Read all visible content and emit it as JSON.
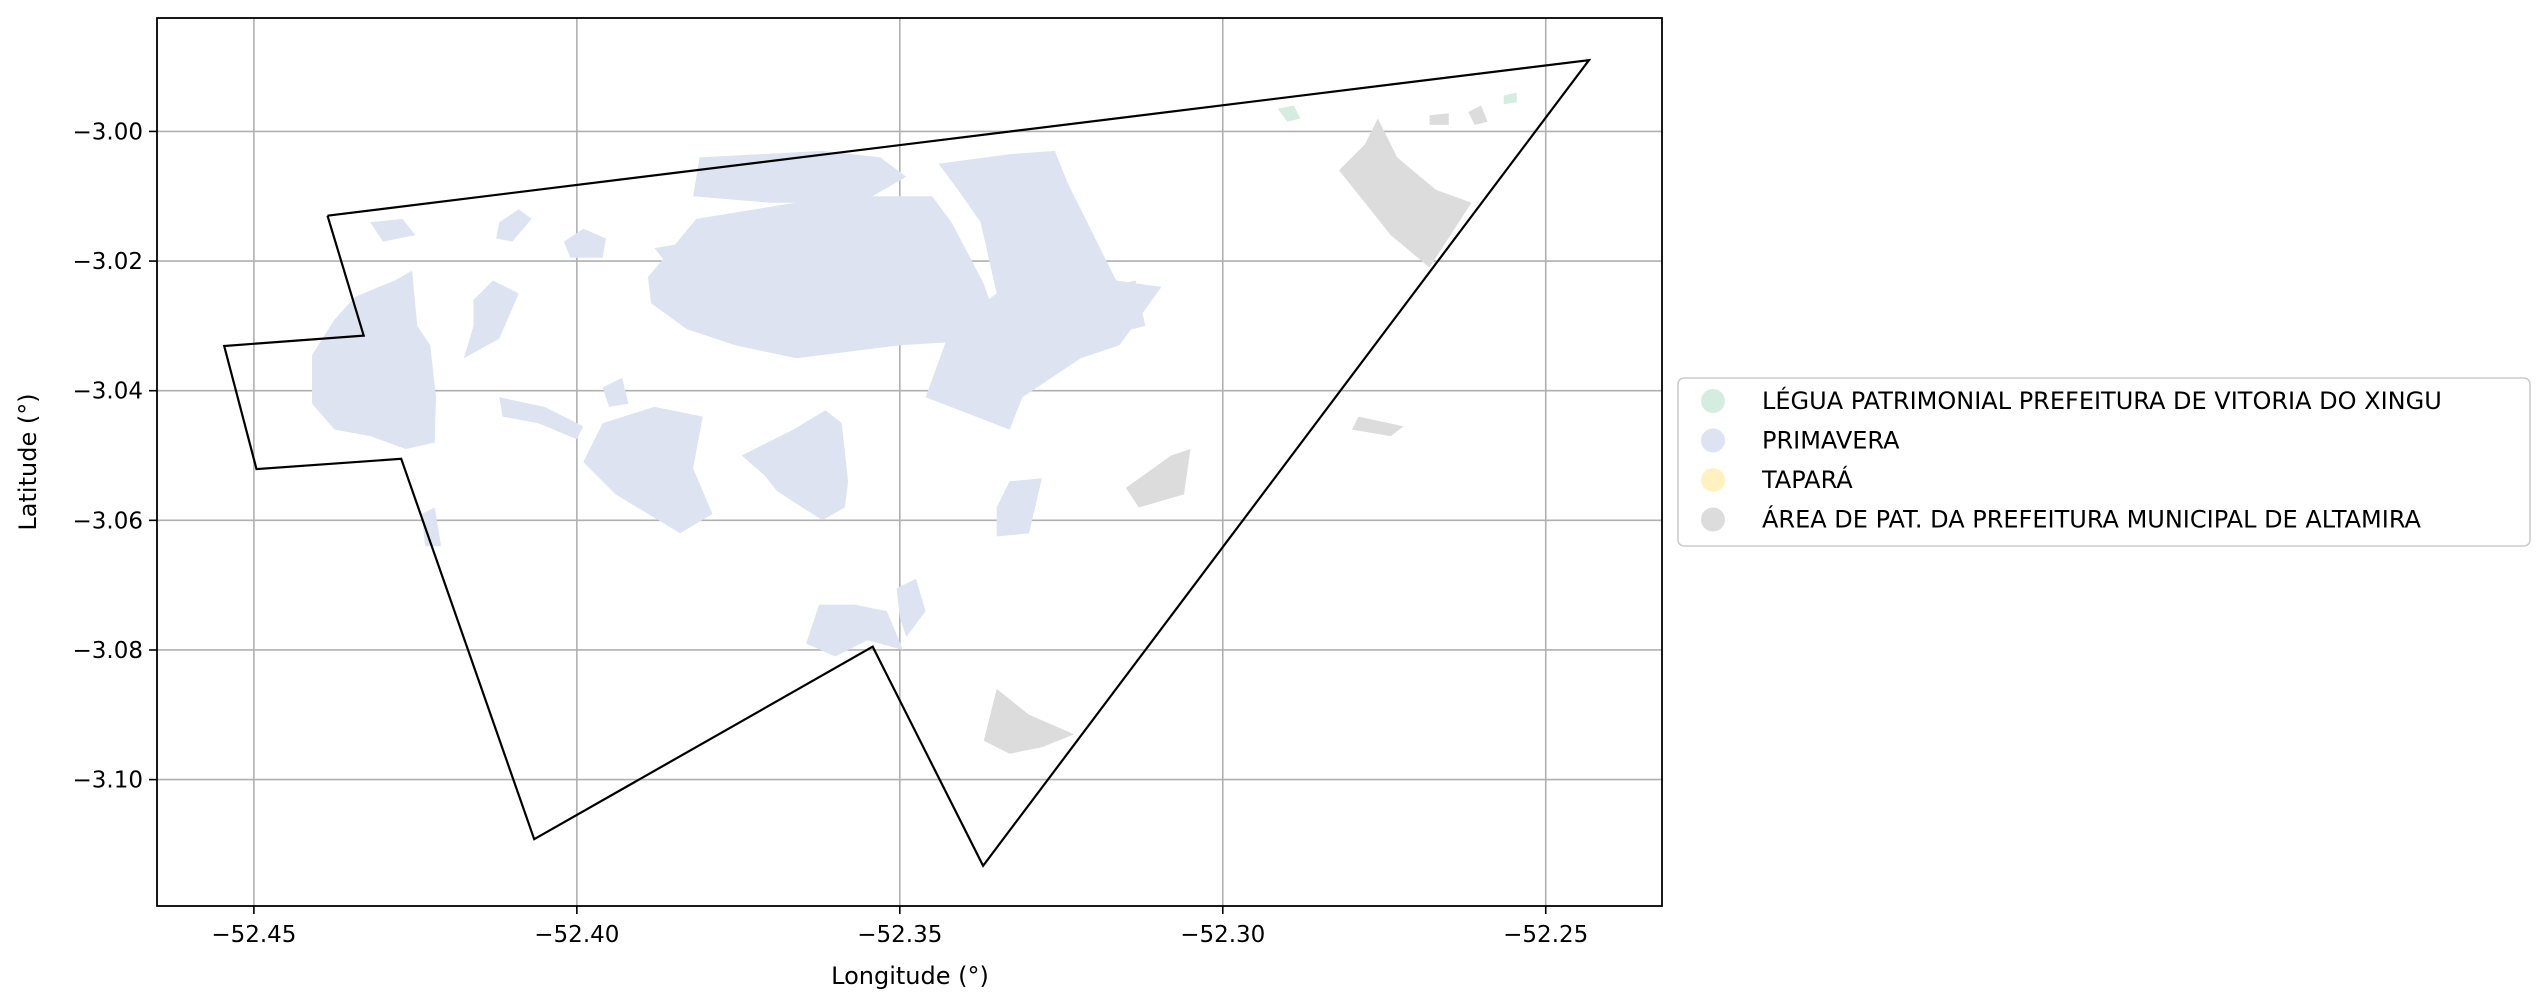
{
  "chart_data": {
    "type": "map",
    "xlabel": "Longitude (°)",
    "ylabel": "Latitude (°)",
    "xlim": [
      -52.465,
      -52.232
    ],
    "ylim": [
      -3.1195,
      -2.9825
    ],
    "xticks": [
      -52.45,
      -52.4,
      -52.35,
      -52.3,
      -52.25
    ],
    "xtick_labels": [
      "−52.45",
      "−52.40",
      "−52.35",
      "−52.30",
      "−52.25"
    ],
    "yticks": [
      -3.0,
      -3.02,
      -3.04,
      -3.06,
      -3.08,
      -3.1
    ],
    "ytick_labels": [
      "−3.00",
      "−3.02",
      "−3.04",
      "−3.06",
      "−3.08",
      "−3.10"
    ],
    "grid": true,
    "legend_position": "right, outside plot",
    "legend": [
      {
        "label": "LÉGUA PATRIMONIAL PREFEITURA DE VITORIA DO XINGU",
        "color": "#d5ede1"
      },
      {
        "label": "PRIMAVERA",
        "color": "#dde3f0"
      },
      {
        "label": "TAPARÁ",
        "color": "#fff2c0"
      },
      {
        "label": "ÁREA DE PAT. DA PREFEITURA MUNICIPAL DE ALTAMIRA",
        "color": "#dcdcdc"
      }
    ],
    "boundary": [
      [
        -52.4386,
        -3.013
      ],
      [
        -52.2433,
        -2.989
      ],
      [
        -52.3371,
        -3.1133
      ],
      [
        -52.3542,
        -3.0795
      ],
      [
        -52.4066,
        -3.1092
      ],
      [
        -52.4272,
        -3.0505
      ],
      [
        -52.4496,
        -3.0521
      ],
      [
        -52.4546,
        -3.0331
      ],
      [
        -52.433,
        -3.0315
      ],
      [
        -52.4386,
        -3.013
      ]
    ],
    "regions": [
      {
        "class": "PRIMAVERA",
        "coords": [
          [
            -52.4343,
            -3.0255
          ],
          [
            -52.4282,
            -3.023
          ],
          [
            -52.4255,
            -3.0215
          ],
          [
            -52.4247,
            -3.03
          ],
          [
            -52.4227,
            -3.033
          ],
          [
            -52.4218,
            -3.041
          ],
          [
            -52.422,
            -3.048
          ],
          [
            -52.4265,
            -3.049
          ],
          [
            -52.432,
            -3.047
          ],
          [
            -52.4375,
            -3.046
          ],
          [
            -52.441,
            -3.042
          ],
          [
            -52.441,
            -3.0345
          ],
          [
            -52.4375,
            -3.029
          ]
        ]
      },
      {
        "class": "PRIMAVERA",
        "coords": [
          [
            -52.389,
            -3.0225
          ],
          [
            -52.3815,
            -3.0135
          ],
          [
            -52.36,
            -3.01
          ],
          [
            -52.345,
            -3.01
          ],
          [
            -52.342,
            -3.014
          ],
          [
            -52.337,
            -3.0235
          ],
          [
            -52.3335,
            -3.0335
          ],
          [
            -52.342,
            -3.0325
          ],
          [
            -52.35,
            -3.033
          ],
          [
            -52.366,
            -3.035
          ],
          [
            -52.3755,
            -3.033
          ],
          [
            -52.383,
            -3.0305
          ],
          [
            -52.3885,
            -3.0265
          ]
        ]
      },
      {
        "class": "PRIMAVERA",
        "coords": [
          [
            -52.344,
            -3.005
          ],
          [
            -52.333,
            -3.0035
          ],
          [
            -52.326,
            -3.003
          ],
          [
            -52.324,
            -3.008
          ],
          [
            -52.3165,
            -3.023
          ],
          [
            -52.3095,
            -3.024
          ],
          [
            -52.316,
            -3.033
          ],
          [
            -52.322,
            -3.035
          ],
          [
            -52.331,
            -3.041
          ],
          [
            -52.333,
            -3.046
          ],
          [
            -52.346,
            -3.041
          ],
          [
            -52.342,
            -3.03
          ],
          [
            -52.335,
            -3.025
          ],
          [
            -52.3375,
            -3.014
          ],
          [
            -52.341,
            -3.009
          ]
        ]
      },
      {
        "class": "PRIMAVERA",
        "coords": [
          [
            -52.381,
            -3.004
          ],
          [
            -52.362,
            -3.003
          ],
          [
            -52.353,
            -3.004
          ],
          [
            -52.349,
            -3.007
          ],
          [
            -52.356,
            -3.011
          ],
          [
            -52.37,
            -3.011
          ],
          [
            -52.382,
            -3.01
          ]
        ]
      },
      {
        "class": "PRIMAVERA",
        "coords": [
          [
            -52.3745,
            -3.05
          ],
          [
            -52.3665,
            -3.046
          ],
          [
            -52.3615,
            -3.043
          ],
          [
            -52.359,
            -3.045
          ],
          [
            -52.358,
            -3.054
          ],
          [
            -52.3585,
            -3.058
          ],
          [
            -52.362,
            -3.06
          ],
          [
            -52.369,
            -3.0555
          ],
          [
            -52.371,
            -3.053
          ]
        ]
      },
      {
        "class": "PRIMAVERA",
        "coords": [
          [
            -52.396,
            -3.045
          ],
          [
            -52.388,
            -3.0425
          ],
          [
            -52.3805,
            -3.044
          ],
          [
            -52.382,
            -3.052
          ],
          [
            -52.379,
            -3.059
          ],
          [
            -52.384,
            -3.062
          ],
          [
            -52.394,
            -3.056
          ],
          [
            -52.399,
            -3.051
          ]
        ]
      },
      {
        "class": "PRIMAVERA",
        "coords": [
          [
            -52.3625,
            -3.073
          ],
          [
            -52.357,
            -3.073
          ],
          [
            -52.352,
            -3.074
          ],
          [
            -52.3495,
            -3.08
          ],
          [
            -52.355,
            -3.0785
          ],
          [
            -52.36,
            -3.081
          ],
          [
            -52.3645,
            -3.079
          ]
        ]
      },
      {
        "class": "PRIMAVERA",
        "coords": [
          [
            -52.3505,
            -3.0705
          ],
          [
            -52.3475,
            -3.069
          ],
          [
            -52.346,
            -3.074
          ],
          [
            -52.349,
            -3.078
          ],
          [
            -52.35,
            -3.075
          ]
        ]
      },
      {
        "class": "PRIMAVERA",
        "coords": [
          [
            -52.333,
            -3.054
          ],
          [
            -52.328,
            -3.0535
          ],
          [
            -52.33,
            -3.062
          ],
          [
            -52.335,
            -3.0625
          ],
          [
            -52.335,
            -3.058
          ]
        ]
      },
      {
        "class": "PRIMAVERA",
        "coords": [
          [
            -52.416,
            -3.026
          ],
          [
            -52.413,
            -3.023
          ],
          [
            -52.409,
            -3.025
          ],
          [
            -52.412,
            -3.032
          ],
          [
            -52.4175,
            -3.035
          ],
          [
            -52.416,
            -3.03
          ]
        ]
      },
      {
        "class": "PRIMAVERA",
        "coords": [
          [
            -52.412,
            -3.014
          ],
          [
            -52.409,
            -3.012
          ],
          [
            -52.407,
            -3.0135
          ],
          [
            -52.41,
            -3.017
          ],
          [
            -52.4125,
            -3.0165
          ]
        ]
      },
      {
        "class": "PRIMAVERA",
        "coords": [
          [
            -52.402,
            -3.017
          ],
          [
            -52.399,
            -3.015
          ],
          [
            -52.3955,
            -3.0165
          ],
          [
            -52.396,
            -3.0195
          ],
          [
            -52.401,
            -3.0195
          ]
        ]
      },
      {
        "class": "PRIMAVERA",
        "coords": [
          [
            -52.412,
            -3.041
          ],
          [
            -52.405,
            -3.0425
          ],
          [
            -52.399,
            -3.0455
          ],
          [
            -52.4,
            -3.0475
          ],
          [
            -52.406,
            -3.045
          ],
          [
            -52.4115,
            -3.044
          ]
        ]
      },
      {
        "class": "PRIMAVERA",
        "coords": [
          [
            -52.389,
            -3.053
          ],
          [
            -52.383,
            -3.053
          ],
          [
            -52.381,
            -3.06
          ],
          [
            -52.385,
            -3.061
          ],
          [
            -52.388,
            -3.057
          ]
        ]
      },
      {
        "class": "PRIMAVERA",
        "coords": [
          [
            -52.318,
            -3.024
          ],
          [
            -52.3135,
            -3.023
          ],
          [
            -52.312,
            -3.03
          ],
          [
            -52.316,
            -3.031
          ]
        ]
      },
      {
        "class": "PRIMAVERA",
        "coords": [
          [
            -52.424,
            -3.059
          ],
          [
            -52.422,
            -3.058
          ],
          [
            -52.421,
            -3.064
          ],
          [
            -52.4235,
            -3.064
          ]
        ]
      },
      {
        "class": "PRIMAVERA",
        "coords": [
          [
            -52.432,
            -3.014
          ],
          [
            -52.427,
            -3.0135
          ],
          [
            -52.425,
            -3.016
          ],
          [
            -52.43,
            -3.017
          ]
        ]
      },
      {
        "class": "PRIMAVERA",
        "coords": [
          [
            -52.396,
            -3.0395
          ],
          [
            -52.393,
            -3.038
          ],
          [
            -52.392,
            -3.042
          ],
          [
            -52.395,
            -3.0425
          ]
        ]
      },
      {
        "class": "PRIMAVERA",
        "coords": [
          [
            -52.388,
            -3.018
          ],
          [
            -52.382,
            -3.017
          ],
          [
            -52.378,
            -3.02
          ],
          [
            -52.384,
            -3.023
          ]
        ]
      },
      {
        "class": "LÉGUA PATRIMONIAL PREFEITURA DE VITORIA DO XINGU",
        "coords": [
          [
            -52.2915,
            -2.9965
          ],
          [
            -52.289,
            -2.996
          ],
          [
            -52.288,
            -2.998
          ],
          [
            -52.29,
            -2.9985
          ]
        ]
      },
      {
        "class": "LÉGUA PATRIMONIAL PREFEITURA DE VITORIA DO XINGU",
        "coords": [
          [
            -52.2565,
            -2.9945
          ],
          [
            -52.2545,
            -2.994
          ],
          [
            -52.2545,
            -2.9955
          ],
          [
            -52.2565,
            -2.9958
          ]
        ]
      },
      {
        "class": "ÁREA DE PAT. DA PREFEITURA MUNICIPAL DE ALTAMIRA",
        "coords": [
          [
            -52.282,
            -3.006
          ],
          [
            -52.278,
            -3.002
          ],
          [
            -52.276,
            -2.998
          ],
          [
            -52.273,
            -3.004
          ],
          [
            -52.267,
            -3.009
          ],
          [
            -52.2615,
            -3.011
          ],
          [
            -52.268,
            -3.021
          ],
          [
            -52.274,
            -3.016
          ],
          [
            -52.278,
            -3.011
          ]
        ]
      },
      {
        "class": "ÁREA DE PAT. DA PREFEITURA MUNICIPAL DE ALTAMIRA",
        "coords": [
          [
            -52.315,
            -3.055
          ],
          [
            -52.308,
            -3.05
          ],
          [
            -52.305,
            -3.049
          ],
          [
            -52.306,
            -3.056
          ],
          [
            -52.313,
            -3.058
          ]
        ]
      },
      {
        "class": "ÁREA DE PAT. DA PREFEITURA MUNICIPAL DE ALTAMIRA",
        "coords": [
          [
            -52.335,
            -3.086
          ],
          [
            -52.33,
            -3.09
          ],
          [
            -52.323,
            -3.093
          ],
          [
            -52.328,
            -3.095
          ],
          [
            -52.333,
            -3.096
          ],
          [
            -52.337,
            -3.094
          ]
        ]
      },
      {
        "class": "ÁREA DE PAT. DA PREFEITURA MUNICIPAL DE ALTAMIRA",
        "coords": [
          [
            -52.262,
            -2.997
          ],
          [
            -52.26,
            -2.996
          ],
          [
            -52.259,
            -2.9985
          ],
          [
            -52.261,
            -2.999
          ]
        ]
      },
      {
        "class": "ÁREA DE PAT. DA PREFEITURA MUNICIPAL DE ALTAMIRA",
        "coords": [
          [
            -52.268,
            -2.9975
          ],
          [
            -52.265,
            -2.9972
          ],
          [
            -52.265,
            -2.999
          ],
          [
            -52.268,
            -2.999
          ]
        ]
      },
      {
        "class": "ÁREA DE PAT. DA PREFEITURA MUNICIPAL DE ALTAMIRA",
        "coords": [
          [
            -52.279,
            -3.044
          ],
          [
            -52.272,
            -3.0455
          ],
          [
            -52.274,
            -3.047
          ],
          [
            -52.28,
            -3.046
          ]
        ]
      }
    ]
  }
}
